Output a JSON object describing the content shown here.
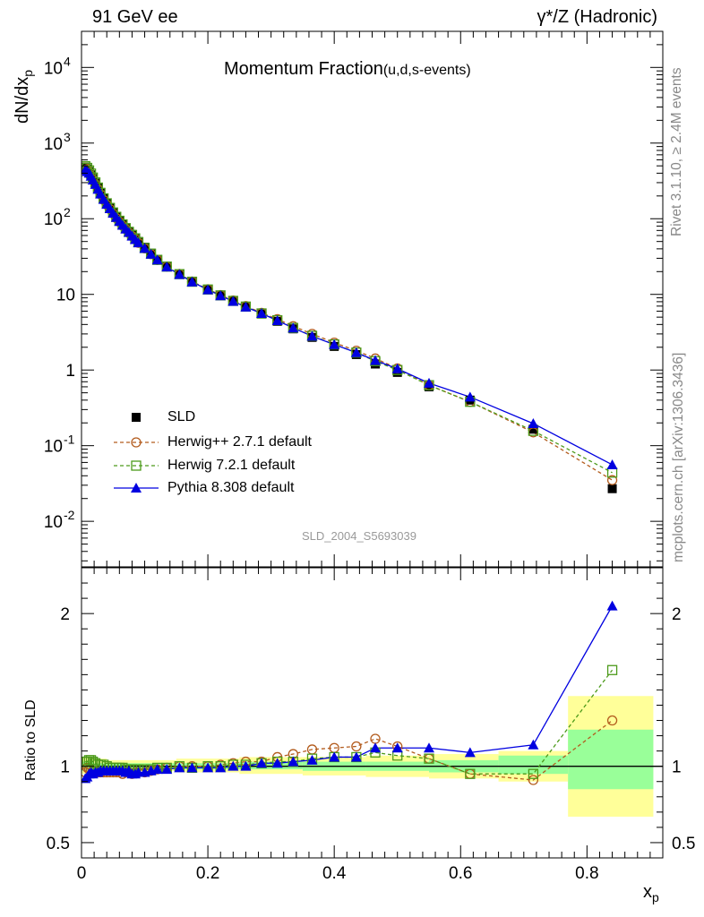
{
  "header": {
    "left": "91 GeV ee",
    "right": "γ*/Z (Hadronic)"
  },
  "side_labels": {
    "rivet": "Rivet 3.1.10, ≥ 2.4M events",
    "mcplots": "mcplots.cern.ch [arXiv:1306.3436]"
  },
  "colors": {
    "SLD": "#000000",
    "Herwig++": "#b35c1e",
    "Herwig7": "#4c9a1a",
    "Pythia": "#0000e0",
    "band_outer": "#ffff99",
    "band_inner": "#99ff99"
  },
  "chart_data": [
    {
      "type": "scatter",
      "panel": "main",
      "title": "Momentum Fraction",
      "subtitle": "(u,d,s-events)",
      "watermark": "SLD_2004_S5693039",
      "ylabel": "dN/dx",
      "ylabel_sub": "p",
      "yscale": "log",
      "ylim": [
        0.0025,
        30000
      ],
      "xlim": [
        0,
        0.92
      ],
      "y_ticks": [
        {
          "value": 0.01,
          "label": "10",
          "sup": "-2"
        },
        {
          "value": 0.1,
          "label": "10",
          "sup": "-1"
        },
        {
          "value": 1,
          "label": "1",
          "sup": ""
        },
        {
          "value": 10,
          "label": "10",
          "sup": ""
        },
        {
          "value": 100,
          "label": "10",
          "sup": "2"
        },
        {
          "value": 1000,
          "label": "10",
          "sup": "3"
        },
        {
          "value": 10000,
          "label": "10",
          "sup": "4"
        }
      ],
      "x": [
        0.006,
        0.009,
        0.012,
        0.015,
        0.018,
        0.022,
        0.026,
        0.03,
        0.035,
        0.04,
        0.045,
        0.05,
        0.055,
        0.06,
        0.065,
        0.07,
        0.075,
        0.08,
        0.085,
        0.09,
        0.1,
        0.11,
        0.12,
        0.135,
        0.155,
        0.175,
        0.2,
        0.22,
        0.24,
        0.26,
        0.285,
        0.31,
        0.335,
        0.365,
        0.4,
        0.435,
        0.465,
        0.5,
        0.55,
        0.615,
        0.715,
        0.84
      ],
      "series": [
        {
          "name": "SLD",
          "marker": "square-filled",
          "values": [
            480,
            455,
            420,
            380,
            340,
            295,
            255,
            218,
            185,
            160,
            140,
            122,
            107,
            95,
            85,
            76,
            68,
            62,
            56,
            50,
            42,
            35,
            29,
            23.5,
            18.5,
            14.8,
            11.6,
            9.7,
            8.1,
            6.8,
            5.5,
            4.4,
            3.5,
            2.7,
            2.05,
            1.6,
            1.2,
            0.93,
            0.6,
            0.4,
            0.165,
            0.027
          ]
        },
        {
          "name": "Herwig++ 2.7.1 default",
          "marker": "circle-open",
          "dashed": true,
          "values": [
            475,
            450,
            410,
            370,
            330,
            285,
            245,
            210,
            177,
            153,
            134,
            117,
            102,
            91,
            81,
            73,
            65,
            59,
            54,
            48,
            40.5,
            34,
            28.5,
            23.3,
            18.6,
            14.8,
            11.7,
            9.8,
            8.3,
            7.0,
            5.7,
            4.7,
            3.8,
            3.0,
            2.3,
            1.8,
            1.42,
            1.05,
            0.63,
            0.38,
            0.15,
            0.035
          ]
        },
        {
          "name": "Herwig 7.2.1 default",
          "marker": "square-open",
          "dashed": true,
          "values": [
            495,
            470,
            435,
            395,
            350,
            302,
            258,
            220,
            186,
            160,
            139,
            121,
            106,
            94,
            84,
            75,
            67,
            61,
            55,
            49,
            41,
            34.5,
            28.6,
            23.3,
            18.5,
            14.7,
            11.6,
            9.7,
            8.2,
            6.9,
            5.6,
            4.55,
            3.6,
            2.83,
            2.18,
            1.7,
            1.31,
            1.0,
            0.63,
            0.38,
            0.157,
            0.044
          ]
        },
        {
          "name": "Pythia 8.308 default",
          "marker": "triangle-filled",
          "dashed": false,
          "values": [
            440,
            420,
            400,
            365,
            325,
            285,
            245,
            212,
            180,
            155,
            136,
            118,
            104,
            92,
            82,
            73,
            66,
            59,
            53,
            48,
            40.5,
            34,
            28.5,
            23,
            18.3,
            14.6,
            11.5,
            9.6,
            8.1,
            6.8,
            5.6,
            4.5,
            3.6,
            2.8,
            2.17,
            1.7,
            1.34,
            1.04,
            0.67,
            0.44,
            0.196,
            0.056
          ]
        }
      ],
      "legend": {
        "placement": "lower-left"
      }
    },
    {
      "type": "line",
      "panel": "ratio",
      "ylabel": "Ratio to SLD",
      "xlabel": "x",
      "xlabel_sub": "p",
      "ylim": [
        0.4,
        2.3
      ],
      "xlim": [
        0,
        0.92
      ],
      "y_ticks": [
        0.5,
        1,
        2
      ],
      "y_tick_labels": [
        "0.5",
        "1",
        "2"
      ],
      "x_ticks": [
        0,
        0.2,
        0.4,
        0.6,
        0.8
      ],
      "x_tick_labels": [
        "0",
        "0.2",
        "0.4",
        "0.6",
        "0.8"
      ],
      "reference": 1,
      "bands": [
        [
          0.0,
          0.02,
          0.95,
          1.06,
          0.97,
          1.03
        ],
        [
          0.02,
          0.04,
          0.96,
          1.05,
          0.98,
          1.02
        ],
        [
          0.04,
          0.1,
          0.97,
          1.04,
          0.98,
          1.02
        ],
        [
          0.1,
          0.15,
          0.97,
          1.04,
          0.98,
          1.02
        ],
        [
          0.15,
          0.25,
          0.96,
          1.05,
          0.98,
          1.02
        ],
        [
          0.25,
          0.35,
          0.95,
          1.06,
          0.98,
          1.03
        ],
        [
          0.35,
          0.45,
          0.94,
          1.06,
          0.97,
          1.03
        ],
        [
          0.45,
          0.55,
          0.93,
          1.07,
          0.97,
          1.03
        ],
        [
          0.55,
          0.66,
          0.92,
          1.08,
          0.96,
          1.04
        ],
        [
          0.66,
          0.77,
          0.9,
          1.1,
          0.95,
          1.07
        ],
        [
          0.77,
          0.905,
          0.67,
          1.46,
          0.85,
          1.24
        ]
      ],
      "x": [
        0.006,
        0.009,
        0.012,
        0.015,
        0.018,
        0.022,
        0.026,
        0.03,
        0.035,
        0.04,
        0.045,
        0.05,
        0.055,
        0.06,
        0.065,
        0.07,
        0.075,
        0.08,
        0.085,
        0.09,
        0.1,
        0.11,
        0.12,
        0.135,
        0.155,
        0.175,
        0.2,
        0.22,
        0.24,
        0.26,
        0.285,
        0.31,
        0.335,
        0.365,
        0.4,
        0.435,
        0.465,
        0.5,
        0.55,
        0.615,
        0.715,
        0.84
      ],
      "series": [
        {
          "name": "Herwig++ 2.7.1 default",
          "values": [
            0.96,
            0.99,
            0.98,
            0.98,
            0.97,
            0.97,
            0.96,
            0.96,
            0.96,
            0.96,
            0.96,
            0.96,
            0.96,
            0.96,
            0.95,
            0.96,
            0.96,
            0.95,
            0.96,
            0.96,
            0.96,
            0.97,
            0.98,
            0.99,
            1.0,
            1.0,
            1.0,
            1.01,
            1.02,
            1.03,
            1.03,
            1.06,
            1.08,
            1.11,
            1.12,
            1.13,
            1.18,
            1.13,
            1.05,
            0.95,
            0.91,
            1.3
          ]
        },
        {
          "name": "Herwig 7.2.1 default",
          "values": [
            1.03,
            1.03,
            1.04,
            1.04,
            1.03,
            1.02,
            1.01,
            1.01,
            1.01,
            1.0,
            0.99,
            0.99,
            0.99,
            0.99,
            0.99,
            0.98,
            0.98,
            0.98,
            0.98,
            0.98,
            0.98,
            0.98,
            0.99,
            0.99,
            1.0,
            0.99,
            1.0,
            1.0,
            1.01,
            1.01,
            1.02,
            1.03,
            1.03,
            1.05,
            1.06,
            1.06,
            1.09,
            1.07,
            1.05,
            0.95,
            0.95,
            1.63
          ]
        },
        {
          "name": "Pythia 8.308 default",
          "values": [
            0.92,
            0.93,
            0.95,
            0.96,
            0.95,
            0.96,
            0.96,
            0.97,
            0.97,
            0.97,
            0.97,
            0.97,
            0.97,
            0.97,
            0.97,
            0.96,
            0.97,
            0.95,
            0.95,
            0.96,
            0.96,
            0.97,
            0.98,
            0.98,
            0.99,
            0.99,
            0.99,
            0.99,
            1.0,
            1.0,
            1.02,
            1.02,
            1.03,
            1.04,
            1.06,
            1.06,
            1.12,
            1.12,
            1.12,
            1.09,
            1.14,
            2.05
          ]
        }
      ]
    }
  ]
}
